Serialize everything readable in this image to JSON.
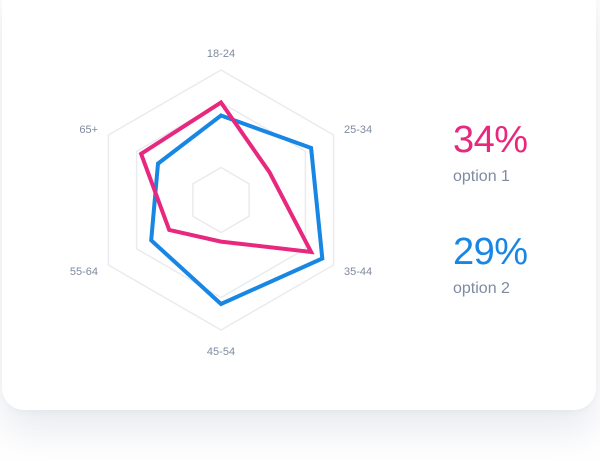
{
  "chart_data": {
    "type": "radar",
    "axes": [
      "18-24",
      "25-34",
      "35-44",
      "45-54",
      "55-64",
      "65+"
    ],
    "max": 100,
    "grid_levels": [
      25,
      75,
      100
    ],
    "series": [
      {
        "name": "option 1",
        "color": "#e8277f",
        "values": [
          75,
          43,
          80,
          32,
          46,
          71
        ],
        "summary": "34%"
      },
      {
        "name": "option 2",
        "color": "#1786e4",
        "values": [
          65,
          80,
          90,
          80,
          62,
          56
        ],
        "summary": "29%"
      }
    ]
  },
  "stats": [
    {
      "value": "34%",
      "label": "option 1",
      "color": "#e8277f"
    },
    {
      "value": "29%",
      "label": "option 2",
      "color": "#1786e4"
    }
  ]
}
